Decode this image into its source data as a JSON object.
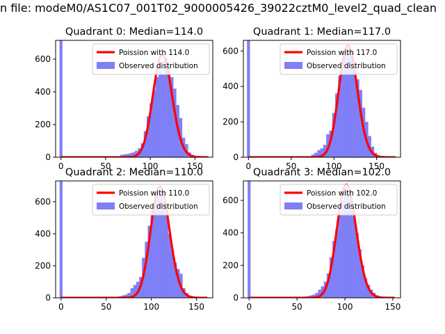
{
  "figure": {
    "title": "n file: modeM0/AS1C07_001T02_9000005426_39022cztM0_level2_quad_clean"
  },
  "colors": {
    "histogram": "#7f7ff7",
    "poisson": "#ff0000",
    "axis": "#000000",
    "background": "#ffffff"
  },
  "chart_data": [
    {
      "type": "bar",
      "title": "Quadrant 0: Median=114.0",
      "xlim": [
        -6,
        170
      ],
      "ylim": [
        0,
        715
      ],
      "xticks": [
        0,
        50,
        100,
        150
      ],
      "yticks": [
        0,
        200,
        400,
        600
      ],
      "legend": [
        "Poission with 114.0",
        "Observed distribution"
      ],
      "legend_position": "upper-right",
      "poisson_mean": 114.0,
      "poisson_scale": 628,
      "poisson_xrange": [
        0,
        165
      ],
      "bin_width": 3.3,
      "spike_bin": {
        "x": 0,
        "value": 715
      },
      "bins_x": [
        66.3,
        69.6,
        72.9,
        76.2,
        79.5,
        82.8,
        86.1,
        89.4,
        92.7,
        96,
        99.3,
        102.6,
        105.9,
        109.2,
        112.5,
        115.8,
        119.1,
        122.4,
        125.7,
        129,
        132.3,
        135.6,
        138.9,
        142.2,
        145.5,
        148.8,
        152.1
      ],
      "values": [
        15,
        18,
        20,
        25,
        30,
        40,
        55,
        85,
        160,
        250,
        330,
        410,
        490,
        560,
        510,
        610,
        550,
        490,
        420,
        320,
        240,
        120,
        80,
        30,
        15,
        8,
        5
      ]
    },
    {
      "type": "bar",
      "title": "Quadrant 1: Median=117.0",
      "xlim": [
        -6,
        178
      ],
      "ylim": [
        0,
        660
      ],
      "xticks": [
        0,
        50,
        100,
        150
      ],
      "yticks": [
        0,
        200,
        400,
        600
      ],
      "legend": [
        "Poission with 117.0",
        "Observed distribution"
      ],
      "legend_position": "upper-right",
      "poisson_mean": 117.0,
      "poisson_scale": 632,
      "poisson_xrange": [
        0,
        172
      ],
      "bin_width": 3.5,
      "spike_bin": {
        "x": 0,
        "value": 660
      },
      "bins_x": [
        73.5,
        77,
        80.5,
        84,
        87.5,
        91,
        94.5,
        98,
        101.5,
        105,
        108.5,
        112,
        115.5,
        119,
        122.5,
        126,
        129.5,
        133,
        136.5,
        140,
        143.5,
        147,
        150.5,
        154
      ],
      "values": [
        15,
        25,
        40,
        50,
        70,
        130,
        150,
        250,
        360,
        460,
        540,
        580,
        620,
        600,
        500,
        440,
        380,
        280,
        200,
        120,
        60,
        25,
        10,
        5
      ]
    },
    {
      "type": "bar",
      "title": "Quadrant 2: Median=110.0",
      "xlim": [
        -6,
        168
      ],
      "ylim": [
        0,
        730
      ],
      "xticks": [
        0,
        50,
        100,
        150
      ],
      "yticks": [
        0,
        200,
        400,
        600
      ],
      "legend": [
        "Poission with 110.0",
        "Observed distribution"
      ],
      "legend_position": "upper-right",
      "poisson_mean": 110.0,
      "poisson_scale": 695,
      "poisson_xrange": [
        0,
        162
      ],
      "bin_width": 3.2,
      "spike_bin": {
        "x": 0,
        "value": 730
      },
      "bins_x": [
        64,
        67.2,
        70.4,
        73.6,
        76.8,
        80,
        83.2,
        86.4,
        89.6,
        92.8,
        96,
        99.2,
        102.4,
        105.6,
        108.8,
        112,
        115.2,
        118.4,
        121.6,
        124.8,
        128,
        131.2,
        134.4,
        137.6,
        140.8,
        144
      ],
      "values": [
        10,
        15,
        20,
        30,
        60,
        80,
        100,
        130,
        250,
        350,
        450,
        550,
        610,
        640,
        680,
        600,
        520,
        400,
        300,
        220,
        180,
        150,
        60,
        30,
        10,
        5
      ]
    },
    {
      "type": "bar",
      "title": "Quadrant 3: Median=102.0",
      "xlim": [
        -6,
        158
      ],
      "ylim": [
        0,
        720
      ],
      "xticks": [
        0,
        50,
        100,
        150
      ],
      "yticks": [
        0,
        200,
        400,
        600
      ],
      "legend": [
        "Poission with 102.0",
        "Observed distribution"
      ],
      "legend_position": "upper-right",
      "poisson_mean": 102.0,
      "poisson_scale": 697,
      "poisson_xrange": [
        0,
        152
      ],
      "bin_width": 3.0,
      "spike_bin": {
        "x": 0,
        "value": 720
      },
      "bins_x": [
        54,
        57,
        60,
        63,
        66,
        69,
        72,
        75,
        78,
        81,
        84,
        87,
        90,
        93,
        96,
        99,
        102,
        105,
        108,
        111,
        114,
        117,
        120,
        123,
        126,
        129,
        132,
        135,
        138
      ],
      "values": [
        5,
        8,
        10,
        15,
        20,
        30,
        50,
        70,
        100,
        150,
        250,
        350,
        420,
        520,
        600,
        680,
        640,
        600,
        500,
        400,
        300,
        200,
        120,
        80,
        50,
        30,
        15,
        8,
        5
      ]
    }
  ]
}
